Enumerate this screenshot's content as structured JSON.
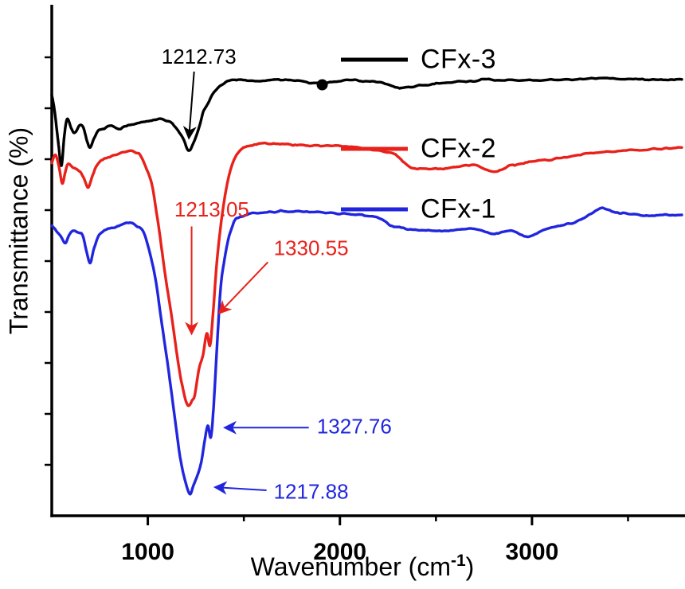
{
  "legend": {
    "entries": [
      {
        "label": "CFx-3",
        "color": "#000000"
      },
      {
        "label": "CFx-2",
        "color": "#e8211b"
      },
      {
        "label": "CFx-1",
        "color": "#2126de"
      }
    ]
  },
  "chart_data": {
    "type": "line",
    "title": "",
    "ylabel": "Transmittance (%)",
    "xlabel": {
      "prefix": "Wavenumber (cm",
      "sup": "-1",
      "suffix": ")"
    },
    "x_axis": {
      "min": 500,
      "max": 3780,
      "major_ticks": [
        1000,
        2000,
        3000
      ],
      "tick_labels": [
        "1000",
        "2000",
        "3000"
      ],
      "minor_ticks": [
        1500,
        2500,
        3500
      ]
    },
    "y_axis": {
      "min": 0,
      "max": 100,
      "ticks": [
        10,
        20,
        30,
        40,
        50,
        60,
        70,
        80,
        90
      ],
      "tick_labels_visible": false
    },
    "series": [
      {
        "name": "CFx-3",
        "color": "#000000",
        "marker_point": [
          1908,
          84.6
        ],
        "points": [
          [
            500,
            82.8
          ],
          [
            515,
            79.5
          ],
          [
            535,
            73.0
          ],
          [
            550,
            68.8
          ],
          [
            565,
            74.5
          ],
          [
            580,
            77.8
          ],
          [
            600,
            76.2
          ],
          [
            620,
            75.3
          ],
          [
            645,
            76.6
          ],
          [
            665,
            76.2
          ],
          [
            685,
            73.5
          ],
          [
            700,
            72.3
          ],
          [
            720,
            74.0
          ],
          [
            745,
            75.6
          ],
          [
            780,
            76.2
          ],
          [
            815,
            76.6
          ],
          [
            850,
            75.8
          ],
          [
            875,
            76.3
          ],
          [
            910,
            76.8
          ],
          [
            940,
            77.0
          ],
          [
            1000,
            77.5
          ],
          [
            1060,
            77.8
          ],
          [
            1100,
            77.4
          ],
          [
            1125,
            77.0
          ],
          [
            1160,
            75.5
          ],
          [
            1185,
            73.9
          ],
          [
            1213,
            71.6
          ],
          [
            1245,
            73.9
          ],
          [
            1270,
            76.5
          ],
          [
            1290,
            79.4
          ],
          [
            1320,
            81.5
          ],
          [
            1350,
            83.3
          ],
          [
            1380,
            84.5
          ],
          [
            1410,
            85.2
          ],
          [
            1470,
            85.6
          ],
          [
            1560,
            85.4
          ],
          [
            1680,
            85.6
          ],
          [
            1790,
            85.3
          ],
          [
            1900,
            84.9
          ],
          [
            2000,
            85.4
          ],
          [
            2050,
            85.6
          ],
          [
            2140,
            85.3
          ],
          [
            2210,
            85.2
          ],
          [
            2290,
            84.1
          ],
          [
            2350,
            84.2
          ],
          [
            2420,
            84.4
          ],
          [
            2500,
            84.8
          ],
          [
            2580,
            85.2
          ],
          [
            2680,
            85.4
          ],
          [
            2790,
            85.6
          ],
          [
            2950,
            85.5
          ],
          [
            3115,
            85.6
          ],
          [
            3250,
            85.7
          ],
          [
            3360,
            85.9
          ],
          [
            3500,
            85.7
          ],
          [
            3610,
            85.6
          ],
          [
            3700,
            85.6
          ],
          [
            3780,
            85.6
          ]
        ]
      },
      {
        "name": "CFx-2",
        "color": "#e8211b",
        "points": [
          [
            500,
            69.2
          ],
          [
            520,
            70.8
          ],
          [
            540,
            68.0
          ],
          [
            555,
            65.3
          ],
          [
            570,
            67.5
          ],
          [
            585,
            69.2
          ],
          [
            610,
            68.3
          ],
          [
            640,
            67.7
          ],
          [
            665,
            66.5
          ],
          [
            690,
            64.5
          ],
          [
            715,
            67.0
          ],
          [
            740,
            69.2
          ],
          [
            780,
            70.2
          ],
          [
            835,
            70.8
          ],
          [
            900,
            71.6
          ],
          [
            935,
            71.2
          ],
          [
            960,
            70.8
          ],
          [
            990,
            68.5
          ],
          [
            1020,
            65.3
          ],
          [
            1045,
            59.5
          ],
          [
            1060,
            55.9
          ],
          [
            1090,
            47.5
          ],
          [
            1125,
            38.8
          ],
          [
            1160,
            29.5
          ],
          [
            1185,
            24.7
          ],
          [
            1200,
            22.4
          ],
          [
            1213,
            21.6
          ],
          [
            1230,
            22.6
          ],
          [
            1245,
            23.9
          ],
          [
            1265,
            28.5
          ],
          [
            1287,
            31.5
          ],
          [
            1307,
            35.8
          ],
          [
            1324,
            33.5
          ],
          [
            1340,
            40.0
          ],
          [
            1360,
            50.0
          ],
          [
            1385,
            58.5
          ],
          [
            1410,
            64.5
          ],
          [
            1435,
            68.5
          ],
          [
            1460,
            70.8
          ],
          [
            1490,
            71.9
          ],
          [
            1510,
            72.3
          ],
          [
            1600,
            73.1
          ],
          [
            1700,
            73.0
          ],
          [
            1800,
            72.8
          ],
          [
            1900,
            72.6
          ],
          [
            2000,
            72.5
          ],
          [
            2090,
            72.3
          ],
          [
            2180,
            71.8
          ],
          [
            2290,
            70.8
          ],
          [
            2370,
            68.4
          ],
          [
            2450,
            68.2
          ],
          [
            2540,
            68.1
          ],
          [
            2620,
            68.5
          ],
          [
            2700,
            68.8
          ],
          [
            2770,
            67.9
          ],
          [
            2820,
            67.7
          ],
          [
            2880,
            68.6
          ],
          [
            2950,
            69.2
          ],
          [
            3030,
            69.6
          ],
          [
            3115,
            70.0
          ],
          [
            3240,
            70.8
          ],
          [
            3360,
            71.3
          ],
          [
            3490,
            71.7
          ],
          [
            3610,
            71.9
          ],
          [
            3700,
            72.1
          ],
          [
            3780,
            72.3
          ]
        ]
      },
      {
        "name": "CFx-1",
        "color": "#2126de",
        "points": [
          [
            500,
            57.0
          ],
          [
            520,
            56.2
          ],
          [
            545,
            55.0
          ],
          [
            570,
            53.6
          ],
          [
            590,
            55.2
          ],
          [
            610,
            56.0
          ],
          [
            640,
            55.6
          ],
          [
            660,
            55.2
          ],
          [
            680,
            52.0
          ],
          [
            700,
            49.7
          ],
          [
            720,
            52.5
          ],
          [
            750,
            55.2
          ],
          [
            790,
            56.2
          ],
          [
            835,
            56.7
          ],
          [
            900,
            57.5
          ],
          [
            940,
            57.0
          ],
          [
            975,
            56.0
          ],
          [
            1005,
            52.5
          ],
          [
            1040,
            46.6
          ],
          [
            1070,
            38.5
          ],
          [
            1105,
            29.4
          ],
          [
            1140,
            19.5
          ],
          [
            1165,
            12.2
          ],
          [
            1190,
            7.5
          ],
          [
            1218,
            4.4
          ],
          [
            1240,
            6.2
          ],
          [
            1262,
            8.2
          ],
          [
            1280,
            10.8
          ],
          [
            1295,
            14.5
          ],
          [
            1312,
            17.7
          ],
          [
            1328,
            15.3
          ],
          [
            1342,
            21.0
          ],
          [
            1360,
            33.0
          ],
          [
            1380,
            45.0
          ],
          [
            1400,
            50.5
          ],
          [
            1420,
            54.4
          ],
          [
            1440,
            56.8
          ],
          [
            1460,
            58.3
          ],
          [
            1510,
            59.0
          ],
          [
            1555,
            59.4
          ],
          [
            1640,
            59.6
          ],
          [
            1720,
            59.8
          ],
          [
            1840,
            59.6
          ],
          [
            1965,
            59.4
          ],
          [
            2070,
            59.1
          ],
          [
            2170,
            58.8
          ],
          [
            2230,
            57.8
          ],
          [
            2290,
            56.7
          ],
          [
            2390,
            56.2
          ],
          [
            2495,
            55.9
          ],
          [
            2600,
            56.1
          ],
          [
            2700,
            56.3
          ],
          [
            2760,
            55.6
          ],
          [
            2800,
            55.2
          ],
          [
            2850,
            55.7
          ],
          [
            2900,
            55.9
          ],
          [
            2945,
            55.2
          ],
          [
            2985,
            54.7
          ],
          [
            3050,
            55.8
          ],
          [
            3110,
            56.7
          ],
          [
            3175,
            57.2
          ],
          [
            3235,
            57.8
          ],
          [
            3300,
            59.0
          ],
          [
            3360,
            60.3
          ],
          [
            3420,
            59.8
          ],
          [
            3480,
            59.4
          ],
          [
            3550,
            59.1
          ],
          [
            3610,
            58.8
          ],
          [
            3700,
            59.0
          ],
          [
            3780,
            59.1
          ]
        ]
      }
    ],
    "annotations": [
      {
        "text": "1212.73",
        "series": "CFx-3",
        "color": "#000000",
        "text_at": [
          1266,
          90.2
        ],
        "arrow_from": [
          1241,
          87.2
        ],
        "arrow_to": [
          1214,
          74.2
        ]
      },
      {
        "text": "1213.05",
        "series": "CFx-2",
        "color": "#e8211b",
        "text_at": [
          1333,
          60.2
        ],
        "arrow_from": [
          1228,
          56.8
        ],
        "arrow_to": [
          1228,
          35.8
        ]
      },
      {
        "text": "1330.55",
        "series": "CFx-2",
        "color": "#e8211b",
        "text_at": [
          1850,
          52.6
        ],
        "arrow_from": [
          1625,
          49.8
        ],
        "arrow_to": [
          1372,
          39.8
        ]
      },
      {
        "text": "1327.76",
        "series": "CFx-1",
        "color": "#2126de",
        "text_at": [
          2075,
          17.6
        ],
        "arrow_from": [
          1838,
          17.3
        ],
        "arrow_to": [
          1402,
          17.3
        ]
      },
      {
        "text": "1217.88",
        "series": "CFx-1",
        "color": "#2126de",
        "text_at": [
          1850,
          4.8
        ],
        "arrow_from": [
          1618,
          5.0
        ],
        "arrow_to": [
          1352,
          5.6
        ]
      }
    ]
  }
}
